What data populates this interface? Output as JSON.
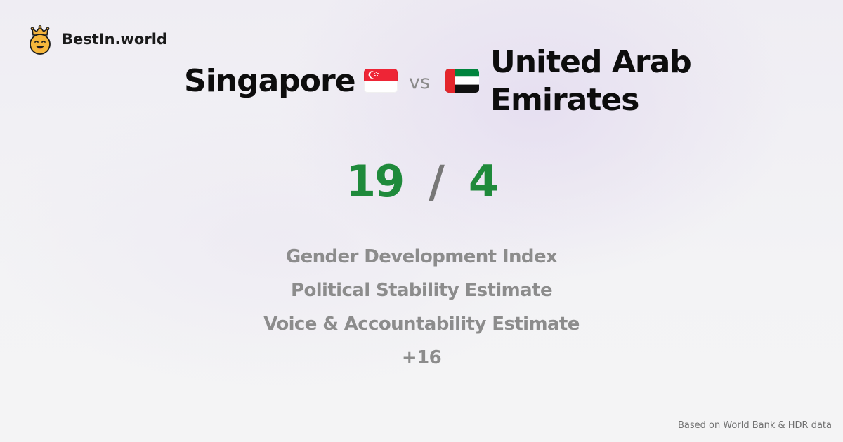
{
  "brand": {
    "name": "BestIn.world",
    "icon": "crowned-smiley-icon"
  },
  "comparison": {
    "country_a": {
      "name": "Singapore",
      "flag_icon": "singapore-flag-icon"
    },
    "vs_label": "vs",
    "country_b": {
      "name": "United Arab Emirates",
      "flag_icon": "uae-flag-icon"
    },
    "score_a": "19",
    "score_separator": "/",
    "score_b": "4"
  },
  "metrics": [
    "Gender Development Index",
    "Political Stability Estimate",
    "Voice & Accountability Estimate",
    "+16"
  ],
  "footer": {
    "source": "Based on World Bank & HDR data"
  },
  "colors": {
    "score": "#1f8a3b",
    "metric_text": "#8c8c8c",
    "heading": "#0d0d0d",
    "background": "#f3f3f5"
  }
}
